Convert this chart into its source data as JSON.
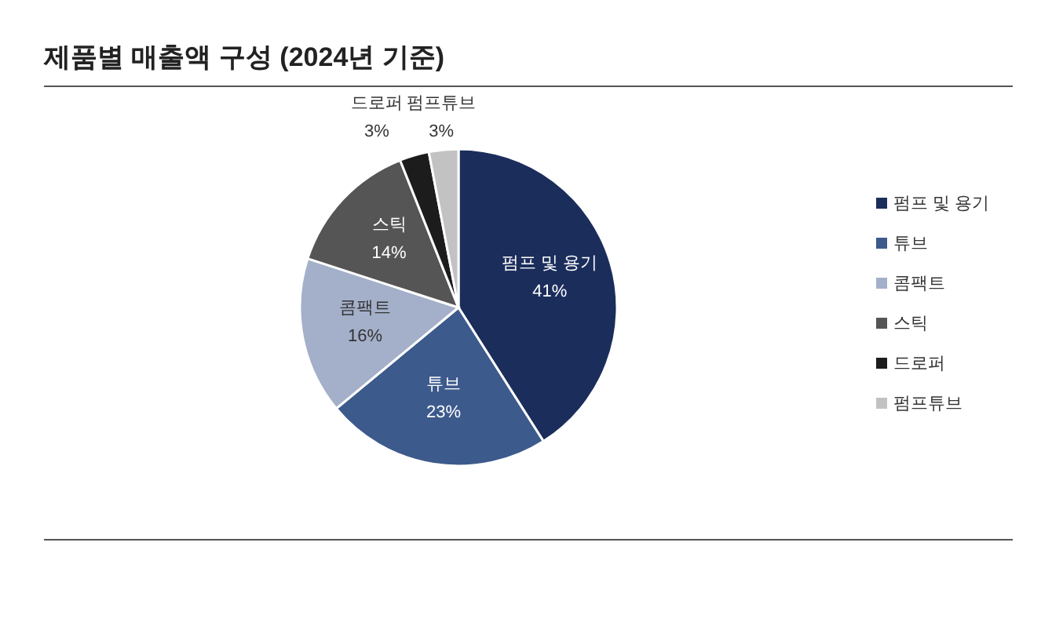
{
  "chart_data": {
    "type": "pie",
    "title": "제품별 매출액 구성 (2024년 기준)",
    "categories": [
      "펌프 및 용기",
      "튜브",
      "콤팩트",
      "스틱",
      "드로퍼",
      "펌프튜브"
    ],
    "values": [
      41,
      23,
      16,
      14,
      3,
      3
    ],
    "value_labels": [
      "41%",
      "23%",
      "16%",
      "14%",
      "3%",
      "3%"
    ],
    "colors": [
      "#1b2d5b",
      "#3d5a8c",
      "#a4b0ca",
      "#555555",
      "#1c1c1c",
      "#c2c2c2"
    ],
    "legend": "right"
  }
}
